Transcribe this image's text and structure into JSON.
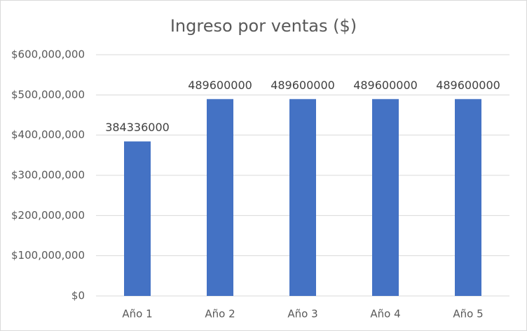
{
  "chart_data": {
    "type": "bar",
    "title": "Ingreso por ventas ($)",
    "categories": [
      "Año 1",
      "Año 2",
      "Año 3",
      "Año 4",
      "Año 5"
    ],
    "values": [
      384336000,
      489600000,
      489600000,
      489600000,
      489600000
    ],
    "color": "#4472c4",
    "ylim": [
      0,
      600000000
    ],
    "yticks": [
      {
        "value": 0,
        "label": "$0"
      },
      {
        "value": 100000000,
        "label": "$100,000,000"
      },
      {
        "value": 200000000,
        "label": "$200,000,000"
      },
      {
        "value": 300000000,
        "label": "$300,000,000"
      },
      {
        "value": 400000000,
        "label": "$400,000,000"
      },
      {
        "value": 500000000,
        "label": "$500,000,000"
      },
      {
        "value": 600000000,
        "label": "$600,000,000"
      }
    ],
    "grid": true
  }
}
